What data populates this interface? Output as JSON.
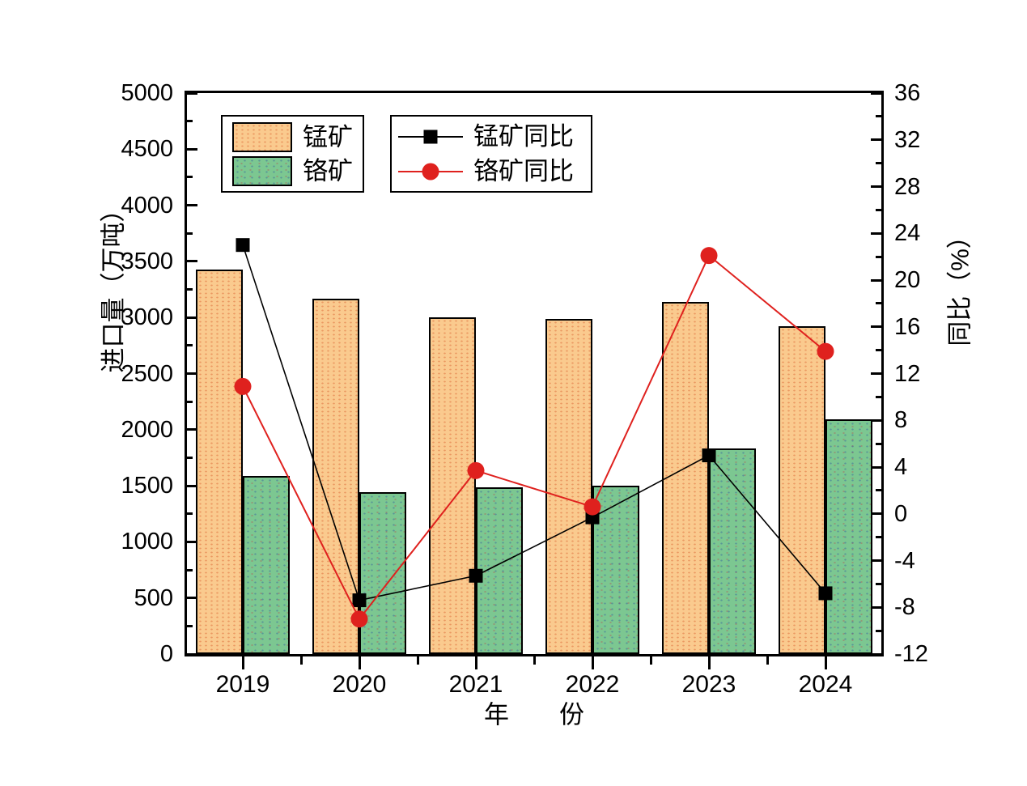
{
  "chart_data": {
    "type": "bar",
    "subtype": "dual-axis bar + line",
    "categories": [
      "2019",
      "2020",
      "2021",
      "2022",
      "2023",
      "2024"
    ],
    "bar_series": [
      {
        "name": "锰矿",
        "axis": "left",
        "color": "#FACA8E",
        "values": [
          3425,
          3170,
          3000,
          2990,
          3140,
          2925
        ]
      },
      {
        "name": "铬矿",
        "axis": "left",
        "color": "#7CC791",
        "values": [
          1590,
          1445,
          1490,
          1500,
          1830,
          2090
        ]
      }
    ],
    "line_series": [
      {
        "name": "锰矿同比",
        "axis": "right",
        "color": "#000000",
        "marker": "square",
        "values": [
          23.0,
          -7.4,
          -5.3,
          -0.3,
          5.0,
          -6.8
        ]
      },
      {
        "name": "铬矿同比",
        "axis": "right",
        "color": "#DF211E",
        "marker": "circle",
        "values": [
          10.9,
          -9.0,
          3.7,
          0.6,
          22.1,
          13.9
        ]
      }
    ],
    "xlabel": "年　　份",
    "ylabel_left": "进口量（万吨）",
    "ylabel_right": "同比（%）",
    "y_left": {
      "min": 0,
      "max": 5000,
      "step": 500,
      "minor": 250
    },
    "y_right": {
      "min": -12,
      "max": 36,
      "step": 4,
      "minor": 2
    },
    "y_left_tick_labels": [
      "0",
      "500",
      "1000",
      "1500",
      "2000",
      "2500",
      "3000",
      "3500",
      "4000",
      "4500",
      "5000"
    ],
    "y_right_tick_labels": [
      "-12",
      "-8",
      "-4",
      "0",
      "4",
      "8",
      "12",
      "16",
      "20",
      "24",
      "28",
      "32",
      "36"
    ],
    "grid": false,
    "legend_position": "inside top-left, two boxes"
  },
  "colors": {
    "background": "#ffffff",
    "axis": "#000000",
    "bar_manganese": "#FACA8E",
    "bar_chromium": "#7CC791",
    "line_manganese_yoy": "#000000",
    "line_chromium_yoy": "#DF211E"
  }
}
